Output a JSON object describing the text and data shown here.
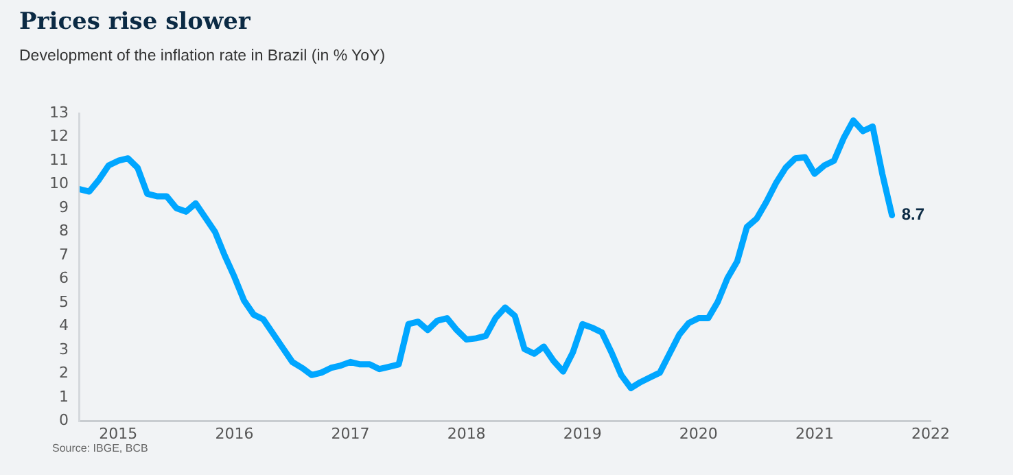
{
  "chart_data": {
    "type": "line",
    "title": "Prices rise slower",
    "subtitle": "Development of the inflation rate in Brazil (in % YoY)",
    "annotations": [
      "Source: IBGE, BCB"
    ],
    "x": [
      "2014-09",
      "2014-10",
      "2014-11",
      "2014-12",
      "2015-01",
      "2015-02",
      "2015-03",
      "2015-04",
      "2015-05",
      "2015-06",
      "2015-07",
      "2015-08",
      "2015-09",
      "2015-10",
      "2015-11",
      "2015-12",
      "2016-01",
      "2016-02",
      "2016-03",
      "2016-04",
      "2016-05",
      "2016-06",
      "2016-07",
      "2016-08",
      "2016-09",
      "2016-10",
      "2016-11",
      "2016-12",
      "2017-01",
      "2017-02",
      "2017-03",
      "2017-04",
      "2017-05",
      "2017-06",
      "2017-07",
      "2017-08",
      "2017-09",
      "2017-10",
      "2017-11",
      "2017-12",
      "2018-01",
      "2018-02",
      "2018-03",
      "2018-04",
      "2018-05",
      "2018-06",
      "2018-07",
      "2018-08",
      "2018-09",
      "2018-10",
      "2018-11",
      "2018-12",
      "2019-01",
      "2019-02",
      "2019-03",
      "2019-04",
      "2019-05",
      "2019-06",
      "2019-07",
      "2019-08",
      "2019-09",
      "2019-10",
      "2019-11",
      "2019-12",
      "2020-01",
      "2020-02",
      "2020-03",
      "2020-04",
      "2020-05",
      "2020-06",
      "2020-07",
      "2020-08",
      "2020-09",
      "2020-10",
      "2020-11",
      "2020-12",
      "2021-01",
      "2021-02",
      "2021-03",
      "2021-04",
      "2021-05",
      "2021-06",
      "2021-07",
      "2021-08",
      "2021-09"
    ],
    "series": [
      {
        "color": "#00a6ff",
        "values": [
          9.8,
          9.7,
          10.2,
          10.8,
          11.0,
          11.1,
          10.7,
          9.6,
          9.5,
          9.5,
          9.0,
          8.85,
          9.2,
          8.6,
          8.0,
          7.0,
          6.1,
          5.1,
          4.5,
          4.3,
          3.7,
          3.1,
          2.5,
          2.25,
          1.95,
          2.05,
          2.25,
          2.35,
          2.5,
          2.4,
          2.4,
          2.2,
          2.3,
          2.4,
          4.1,
          4.2,
          3.85,
          4.25,
          4.35,
          3.85,
          3.45,
          3.5,
          3.6,
          4.35,
          4.8,
          4.45,
          3.05,
          2.85,
          3.15,
          2.55,
          2.1,
          2.9,
          4.1,
          3.95,
          3.75,
          2.9,
          1.95,
          1.4,
          1.65,
          1.85,
          2.05,
          2.85,
          3.65,
          4.15,
          4.35,
          4.35,
          5.05,
          6.05,
          6.75,
          8.2,
          8.55,
          9.25,
          10.05,
          10.7,
          11.1,
          11.15,
          10.45,
          10.8,
          11.0,
          11.95,
          12.7,
          12.25,
          12.45,
          10.45,
          8.7
        ],
        "value_labels": [
          null,
          null,
          null,
          null,
          null,
          null,
          null,
          null,
          null,
          null,
          null,
          null,
          null,
          null,
          null,
          null,
          null,
          null,
          null,
          null,
          null,
          null,
          null,
          null,
          null,
          null,
          null,
          null,
          null,
          null,
          null,
          null,
          null,
          null,
          null,
          null,
          null,
          null,
          null,
          null,
          null,
          null,
          null,
          null,
          null,
          null,
          null,
          null,
          null,
          null,
          null,
          null,
          null,
          null,
          null,
          null,
          null,
          null,
          null,
          null,
          null,
          null,
          null,
          null,
          null,
          null,
          null,
          null,
          null,
          null,
          null,
          null,
          null,
          null,
          null,
          null,
          null,
          null,
          null,
          null,
          null,
          null,
          null,
          null,
          "8.7"
        ]
      }
    ],
    "xlim": [
      "2014-09",
      "2022-01"
    ],
    "xticks": [
      "2015",
      "2016",
      "2017",
      "2018",
      "2019",
      "2020",
      "2021",
      "2022"
    ],
    "ylim": [
      0,
      13
    ],
    "yticks": [
      0,
      1,
      2,
      3,
      4,
      5,
      6,
      7,
      8,
      9,
      10,
      11,
      12,
      13
    ],
    "grid": false,
    "legend": false,
    "marker": "none",
    "line_style": "solid"
  }
}
